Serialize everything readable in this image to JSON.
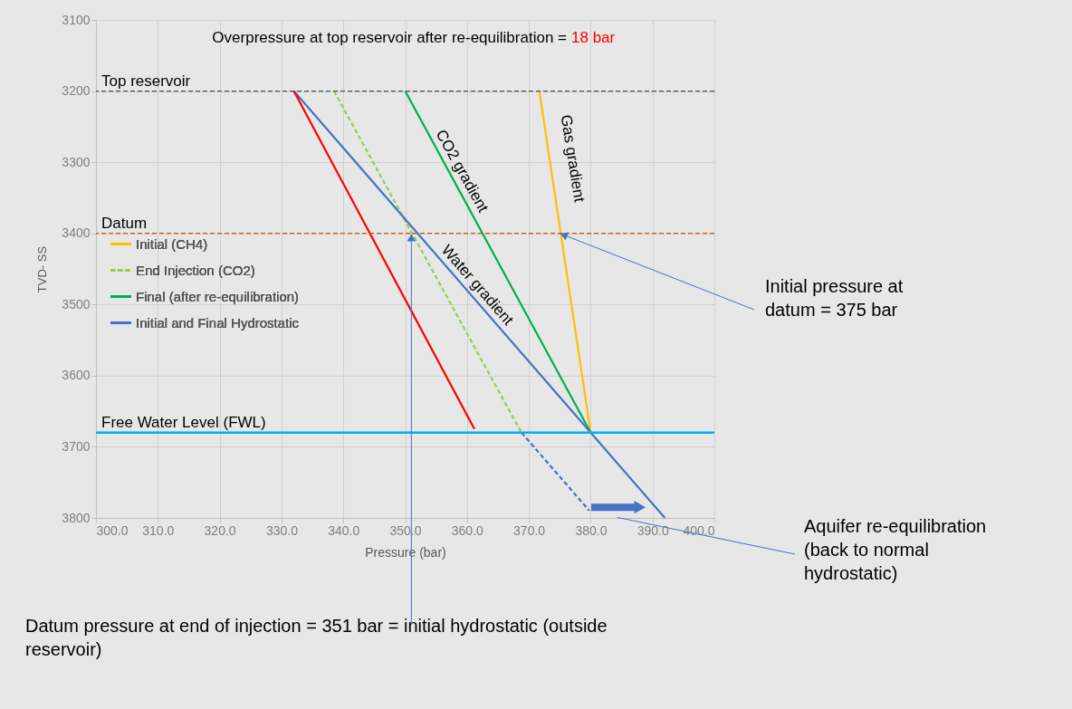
{
  "chart_data": {
    "type": "line",
    "xlabel": "Pressure (bar)",
    "ylabel": "TVD- SS",
    "xlim": [
      300,
      400
    ],
    "ylim": [
      3800,
      3100
    ],
    "xticks": [
      {
        "value": 300,
        "label": "300.0"
      },
      {
        "value": 310,
        "label": "310.0"
      },
      {
        "value": 320,
        "label": "320.0"
      },
      {
        "value": 330,
        "label": "330.0"
      },
      {
        "value": 340,
        "label": "340.0"
      },
      {
        "value": 350,
        "label": "350.0"
      },
      {
        "value": 360,
        "label": "360.0"
      },
      {
        "value": 370,
        "label": "370.0"
      },
      {
        "value": 380,
        "label": "380.0"
      },
      {
        "value": 390,
        "label": "390.0"
      },
      {
        "value": 400,
        "label": "400.0"
      }
    ],
    "yticks": [
      {
        "value": 3100,
        "label": "3100"
      },
      {
        "value": 3200,
        "label": "3200"
      },
      {
        "value": 3300,
        "label": "3300"
      },
      {
        "value": 3400,
        "label": "3400"
      },
      {
        "value": 3500,
        "label": "3500"
      },
      {
        "value": 3600,
        "label": "3600"
      },
      {
        "value": 3700,
        "label": "3700"
      },
      {
        "value": 3800,
        "label": "3800"
      }
    ],
    "grid": true,
    "legend": "left",
    "marker": "none",
    "series": [
      {
        "name": "Initial (CH4)",
        "color": "#ffc000",
        "x": [
          371.7,
          380
        ],
        "values": [
          3200,
          3680
        ]
      },
      {
        "name": "End Injection (CO2)",
        "color": "#92d050",
        "line_style": "dashed",
        "x": [
          338.5,
          368.8
        ],
        "values": [
          3200,
          3680
        ]
      },
      {
        "name": "Final (after re-equilibration)",
        "color": "#00b050",
        "x": [
          350,
          380
        ],
        "values": [
          3200,
          3680
        ]
      },
      {
        "name": "Initial and Final Hydrostatic",
        "color": "#4472c4",
        "x": [
          332,
          392
        ],
        "values": [
          3200,
          3800
        ]
      },
      {
        "color": "#ff0000",
        "x": [
          332,
          361.2
        ],
        "values": [
          3200,
          3675
        ]
      },
      {
        "color": "#4472c4",
        "line_style": "dashed",
        "x": [
          368.8,
          379.8
        ],
        "values": [
          3680,
          3790
        ]
      }
    ],
    "ref_lines": [
      {
        "axis": "y",
        "value": 3200,
        "label": "Top reservoir",
        "color": "#44546a",
        "line_style": "dashed"
      },
      {
        "axis": "y",
        "value": 3400,
        "label": "Datum",
        "color": "#c55a11",
        "line_style": "dashed"
      },
      {
        "axis": "y",
        "value": 3680,
        "label": "Free Water Level (FWL)",
        "color": "#00b0f0",
        "line_style": "solid"
      }
    ],
    "annotations": [
      "Overpressure at top reservoir after re-equilibration =",
      "18 bar",
      "CO2 gradient",
      "Gas gradient",
      "Water gradient",
      {
        "text": "Initial pressure at datum = 375 bar",
        "x": 375,
        "y": 3400
      },
      "Aquifer re-equilibration (back to normal hydrostatic)",
      {
        "text": "Datum pressure at end of injection = 351 bar = initial hydrostatic (outside reservoir)",
        "x": 351,
        "y": 3400
      }
    ]
  }
}
